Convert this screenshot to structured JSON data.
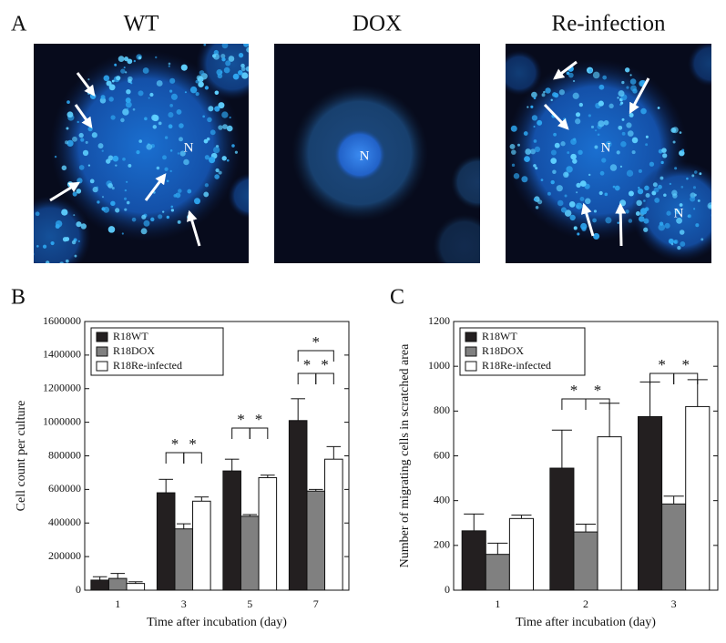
{
  "panel_a": {
    "label": "A",
    "images": [
      {
        "title": "WT",
        "labels": [
          "N"
        ]
      },
      {
        "title": "DOX",
        "labels": [
          "N"
        ]
      },
      {
        "title": "Re-infection",
        "labels": [
          "N",
          "N"
        ]
      }
    ]
  },
  "chart_data": [
    {
      "type": "bar",
      "panel": "B",
      "ylabel": "Cell count per culture",
      "xlabel": "Time after incubation (day)",
      "categories": [
        "1",
        "3",
        "5",
        "7"
      ],
      "series": [
        {
          "name": "R18WT",
          "color": "#231f20",
          "values": [
            60000,
            580000,
            710000,
            1010000
          ],
          "errors": [
            20000,
            80000,
            70000,
            130000
          ]
        },
        {
          "name": "R18DOX",
          "color": "#808080",
          "values": [
            70000,
            365000,
            440000,
            590000
          ],
          "errors": [
            30000,
            30000,
            10000,
            10000
          ]
        },
        {
          "name": "R18Re-infected",
          "color": "#ffffff",
          "values": [
            40000,
            530000,
            670000,
            780000
          ],
          "errors": [
            10000,
            25000,
            15000,
            75000
          ]
        }
      ],
      "ylim": [
        0,
        1600000
      ],
      "yticks": [
        0,
        200000,
        400000,
        600000,
        800000,
        1000000,
        1200000,
        1400000,
        1600000
      ],
      "annotations": [
        "*",
        "*",
        "*",
        "*",
        "*",
        "*",
        "*"
      ]
    },
    {
      "type": "bar",
      "panel": "C",
      "ylabel": "Number of migrating cells in scratched area",
      "xlabel": "Time after incubation (day)",
      "categories": [
        "1",
        "2",
        "3"
      ],
      "series": [
        {
          "name": "R18WT",
          "color": "#231f20",
          "values": [
            265,
            545,
            775
          ],
          "errors": [
            75,
            170,
            155
          ]
        },
        {
          "name": "R18DOX",
          "color": "#808080",
          "values": [
            160,
            260,
            385
          ],
          "errors": [
            50,
            35,
            35
          ]
        },
        {
          "name": "R18Re-infected",
          "color": "#ffffff",
          "values": [
            320,
            685,
            820
          ],
          "errors": [
            15,
            150,
            120
          ]
        }
      ],
      "ylim": [
        0,
        1200
      ],
      "yticks": [
        0,
        200,
        400,
        600,
        800,
        1000,
        1200
      ],
      "annotations": [
        "*",
        "*",
        "*",
        "*"
      ]
    }
  ]
}
